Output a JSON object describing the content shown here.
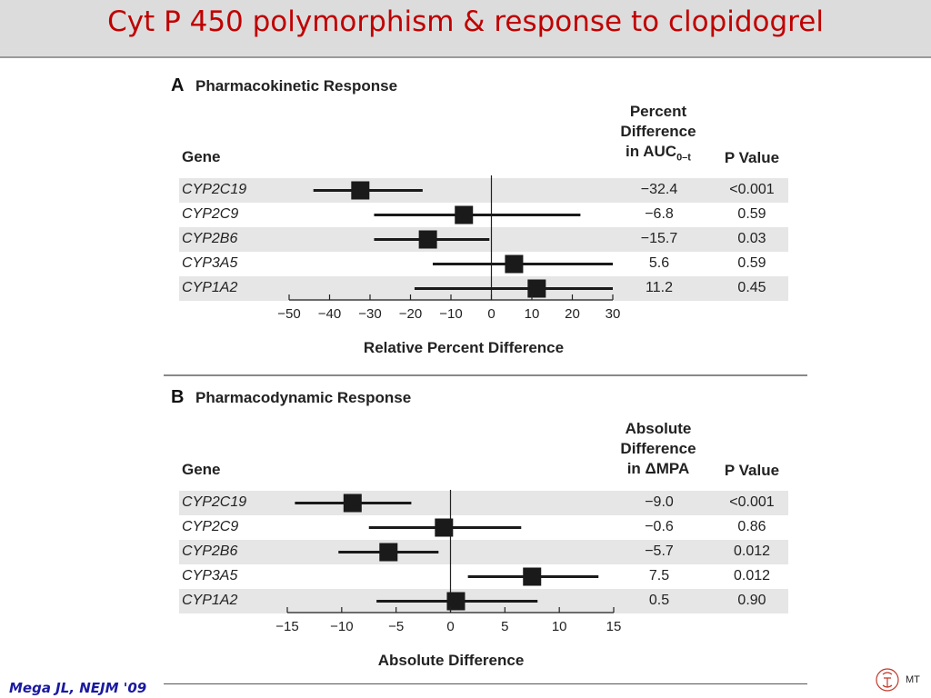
{
  "slide": {
    "title": "Cyt P 450 polymorphism & response to clopidogrel",
    "citation": "Mega JL, NEJM '09",
    "logo_text": "MT"
  },
  "colors": {
    "title": "#c00000",
    "citation": "#1a1aa0",
    "band": "#e6e6e6",
    "marker": "#1a1a1a"
  },
  "chart_data": [
    {
      "type": "forest",
      "panel_letter": "A",
      "title": "Pharmacokinetic Response",
      "gene_header": "Gene",
      "value_header": [
        "Percent",
        "Difference",
        "in AUC"
      ],
      "value_header_sub": "0–t",
      "p_header": "P Value",
      "xlabel": "Relative Percent Difference",
      "xlim": [
        -50,
        30
      ],
      "ticks": [
        "−50",
        "−40",
        "−30",
        "−20",
        "−10",
        "0",
        "10",
        "20",
        "30"
      ],
      "tick_values": [
        -50,
        -40,
        -30,
        -20,
        -10,
        0,
        10,
        20,
        30
      ],
      "rows": [
        {
          "gene": "CYP2C19",
          "value": -32.4,
          "value_label": "−32.4",
          "ci": [
            -44,
            -17
          ],
          "p": "<0.001"
        },
        {
          "gene": "CYP2C9",
          "value": -6.8,
          "value_label": "−6.8",
          "ci": [
            -29,
            22
          ],
          "p": "0.59"
        },
        {
          "gene": "CYP2B6",
          "value": -15.7,
          "value_label": "−15.7",
          "ci": [
            -29,
            -0.5
          ],
          "p": "0.03"
        },
        {
          "gene": "CYP3A5",
          "value": 5.6,
          "value_label": "5.6",
          "ci": [
            -14.5,
            30
          ],
          "p": "0.59"
        },
        {
          "gene": "CYP1A2",
          "value": 11.2,
          "value_label": "11.2",
          "ci": [
            -19,
            30
          ],
          "p": "0.45"
        }
      ]
    },
    {
      "type": "forest",
      "panel_letter": "B",
      "title": "Pharmacodynamic Response",
      "gene_header": "Gene",
      "value_header": [
        "Absolute",
        "Difference",
        "in ΔMPA"
      ],
      "value_header_sub": "",
      "p_header": "P Value",
      "xlabel": "Absolute Difference",
      "xlim": [
        -15,
        15
      ],
      "ticks": [
        "−15",
        "−10",
        "−5",
        "0",
        "5",
        "10",
        "15"
      ],
      "tick_values": [
        -15,
        -10,
        -5,
        0,
        5,
        10,
        15
      ],
      "rows": [
        {
          "gene": "CYP2C19",
          "value": -9.0,
          "value_label": "−9.0",
          "ci": [
            -14.3,
            -3.6
          ],
          "p": "<0.001"
        },
        {
          "gene": "CYP2C9",
          "value": -0.6,
          "value_label": "−0.6",
          "ci": [
            -7.5,
            6.5
          ],
          "p": "0.86"
        },
        {
          "gene": "CYP2B6",
          "value": -5.7,
          "value_label": "−5.7",
          "ci": [
            -10.3,
            -1.1
          ],
          "p": "0.012"
        },
        {
          "gene": "CYP3A5",
          "value": 7.5,
          "value_label": "7.5",
          "ci": [
            1.6,
            13.6
          ],
          "p": "0.012"
        },
        {
          "gene": "CYP1A2",
          "value": 0.5,
          "value_label": "0.5",
          "ci": [
            -6.8,
            8.0
          ],
          "p": "0.90"
        }
      ]
    }
  ]
}
